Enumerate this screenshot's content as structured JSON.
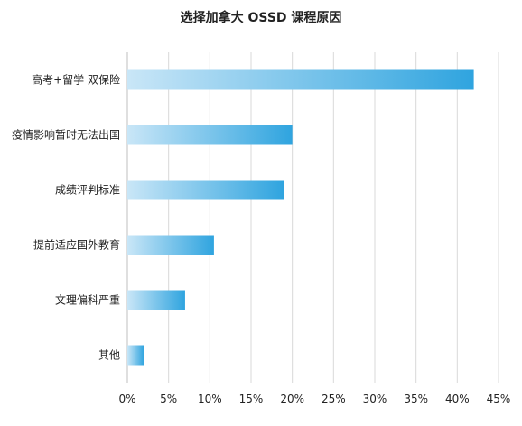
{
  "chart_data": {
    "type": "bar",
    "orientation": "horizontal",
    "title": "选择加拿大 OSSD 课程原因",
    "categories": [
      "高考+留学 双保险",
      "疫情影响暂时无法出国",
      "成绩评判标准",
      "提前适应国外教育",
      "文理偏科严重",
      "其他"
    ],
    "values": [
      42,
      20,
      19,
      10.5,
      7,
      2
    ],
    "xlim": [
      0,
      45
    ],
    "x_ticks": [
      "0%",
      "5%",
      "10%",
      "15%",
      "20%",
      "25%",
      "30%",
      "35%",
      "40%",
      "45%"
    ],
    "grid": "vertical",
    "legend": "none",
    "colors": {
      "bar_start": "#c9e6f7",
      "bar_end": "#2fa4df",
      "grid": "#d9d9d9",
      "axis": "#bfbfbf"
    }
  }
}
